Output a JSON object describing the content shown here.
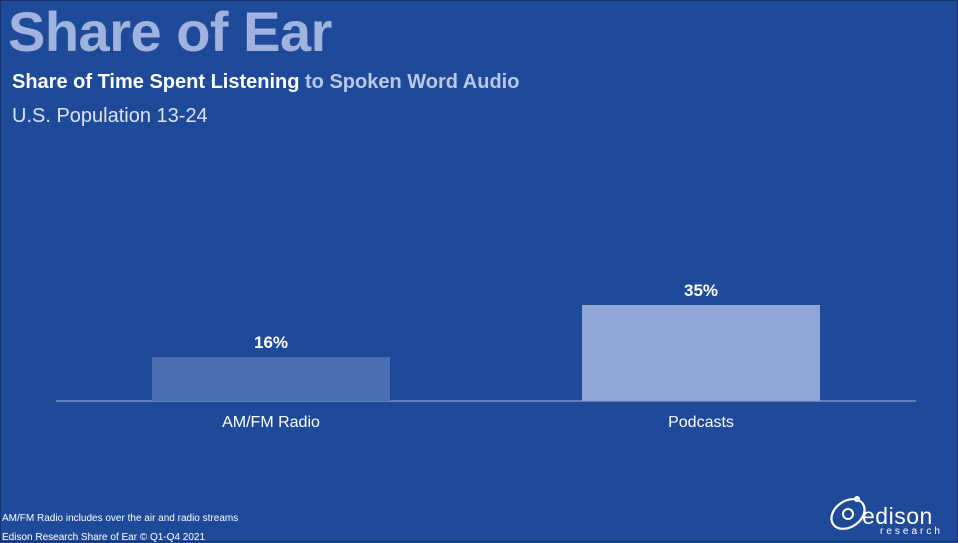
{
  "header": {
    "title": "Share of Ear",
    "subtitle_bold": "Share of Time Spent Listening",
    "subtitle_rest": "to Spoken Word Audio",
    "population": "U.S. Population 13-24"
  },
  "footer": {
    "note": "AM/FM Radio includes over the air and radio streams",
    "copyright": "Edison Research Share of Ear © Q1-Q4 2021"
  },
  "logo": {
    "word": "edison",
    "sub": "research"
  },
  "colors": {
    "background": "#1f4a9a",
    "bar_radio": "#4a6fb5",
    "bar_podcasts": "#8fa6d6",
    "title": "#9fb3de"
  },
  "chart_data": {
    "type": "bar",
    "categories": [
      "AM/FM Radio",
      "Podcasts"
    ],
    "values": [
      16,
      35
    ],
    "value_labels": [
      "16%",
      "35%"
    ],
    "ylim": [
      0,
      100
    ],
    "grid": false
  }
}
